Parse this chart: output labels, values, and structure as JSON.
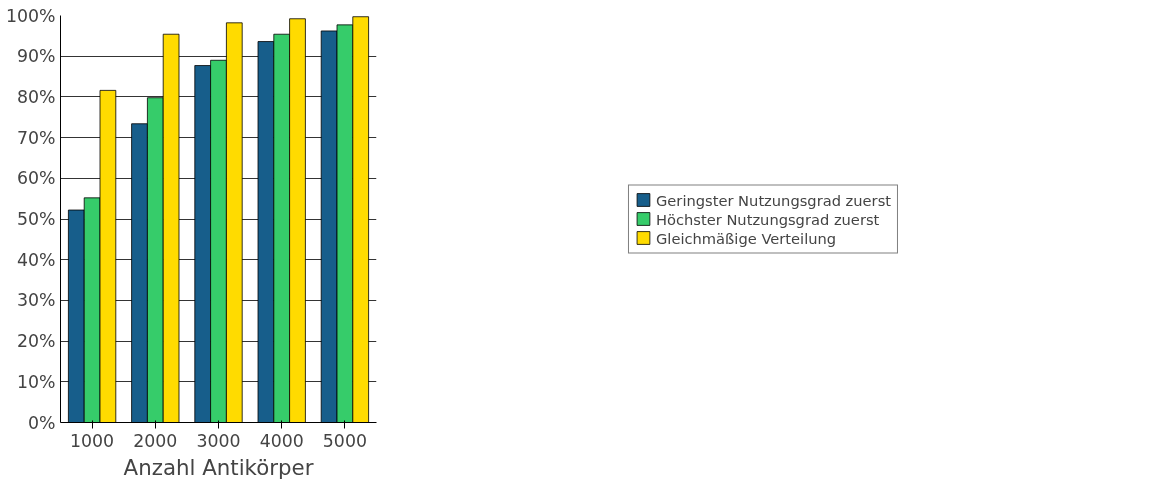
{
  "chart_data": {
    "type": "bar",
    "xlabel": "Anzahl Antikörper",
    "categories": [
      "1000",
      "2000",
      "3000",
      "4000",
      "5000"
    ],
    "series": [
      {
        "name": "Geringster Nutzungsgrad zuerst",
        "color": "#175e8b",
        "values": [
          52.2,
          73.4,
          87.7,
          93.6,
          96.2
        ]
      },
      {
        "name": "Höchster Nutzungsgrad zuerst",
        "color": "#36cc6a",
        "values": [
          55.2,
          79.8,
          89.0,
          95.4,
          97.7
        ]
      },
      {
        "name": "Gleichmäßige Verteilung",
        "color": "#ffdb00",
        "values": [
          81.6,
          95.4,
          98.2,
          99.2,
          99.7
        ]
      }
    ],
    "ylim": [
      0,
      100
    ],
    "yticks": [
      {
        "value": 0,
        "label": "0%"
      },
      {
        "value": 10,
        "label": "10%"
      },
      {
        "value": 20,
        "label": "20%"
      },
      {
        "value": 30,
        "label": "30%"
      },
      {
        "value": 40,
        "label": "40%"
      },
      {
        "value": 50,
        "label": "50%"
      },
      {
        "value": 60,
        "label": "60%"
      },
      {
        "value": 70,
        "label": "70%"
      },
      {
        "value": 80,
        "label": "80%"
      },
      {
        "value": 90,
        "label": "90%"
      },
      {
        "value": 100,
        "label": "100%"
      }
    ],
    "grid": "y",
    "legend": "right"
  }
}
